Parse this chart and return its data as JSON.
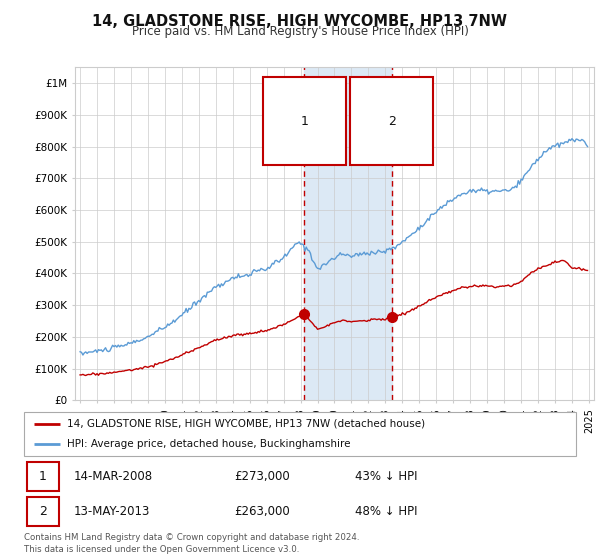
{
  "title": "14, GLADSTONE RISE, HIGH WYCOMBE, HP13 7NW",
  "subtitle": "Price paid vs. HM Land Registry's House Price Index (HPI)",
  "ylim": [
    0,
    1050000
  ],
  "yticks": [
    0,
    100000,
    200000,
    300000,
    400000,
    500000,
    600000,
    700000,
    800000,
    900000,
    1000000
  ],
  "ytick_labels": [
    "£0",
    "£100K",
    "£200K",
    "£300K",
    "£400K",
    "£500K",
    "£600K",
    "£700K",
    "£800K",
    "£900K",
    "£1M"
  ],
  "hpi_color": "#5b9bd5",
  "price_color": "#c00000",
  "sale1_date_num": 2008.21,
  "sale1_price": 273000,
  "sale1_label": "1",
  "sale2_date_num": 2013.37,
  "sale2_price": 263000,
  "sale2_label": "2",
  "grid_color": "#cccccc",
  "legend_entry1": "14, GLADSTONE RISE, HIGH WYCOMBE, HP13 7NW (detached house)",
  "legend_entry2": "HPI: Average price, detached house, Buckinghamshire",
  "table_row1": [
    "1",
    "14-MAR-2008",
    "£273,000",
    "43% ↓ HPI"
  ],
  "table_row2": [
    "2",
    "13-MAY-2013",
    "£263,000",
    "48% ↓ HPI"
  ],
  "footer": "Contains HM Land Registry data © Crown copyright and database right 2024.\nThis data is licensed under the Open Government Licence v3.0.",
  "shade_color": "#dce9f5"
}
